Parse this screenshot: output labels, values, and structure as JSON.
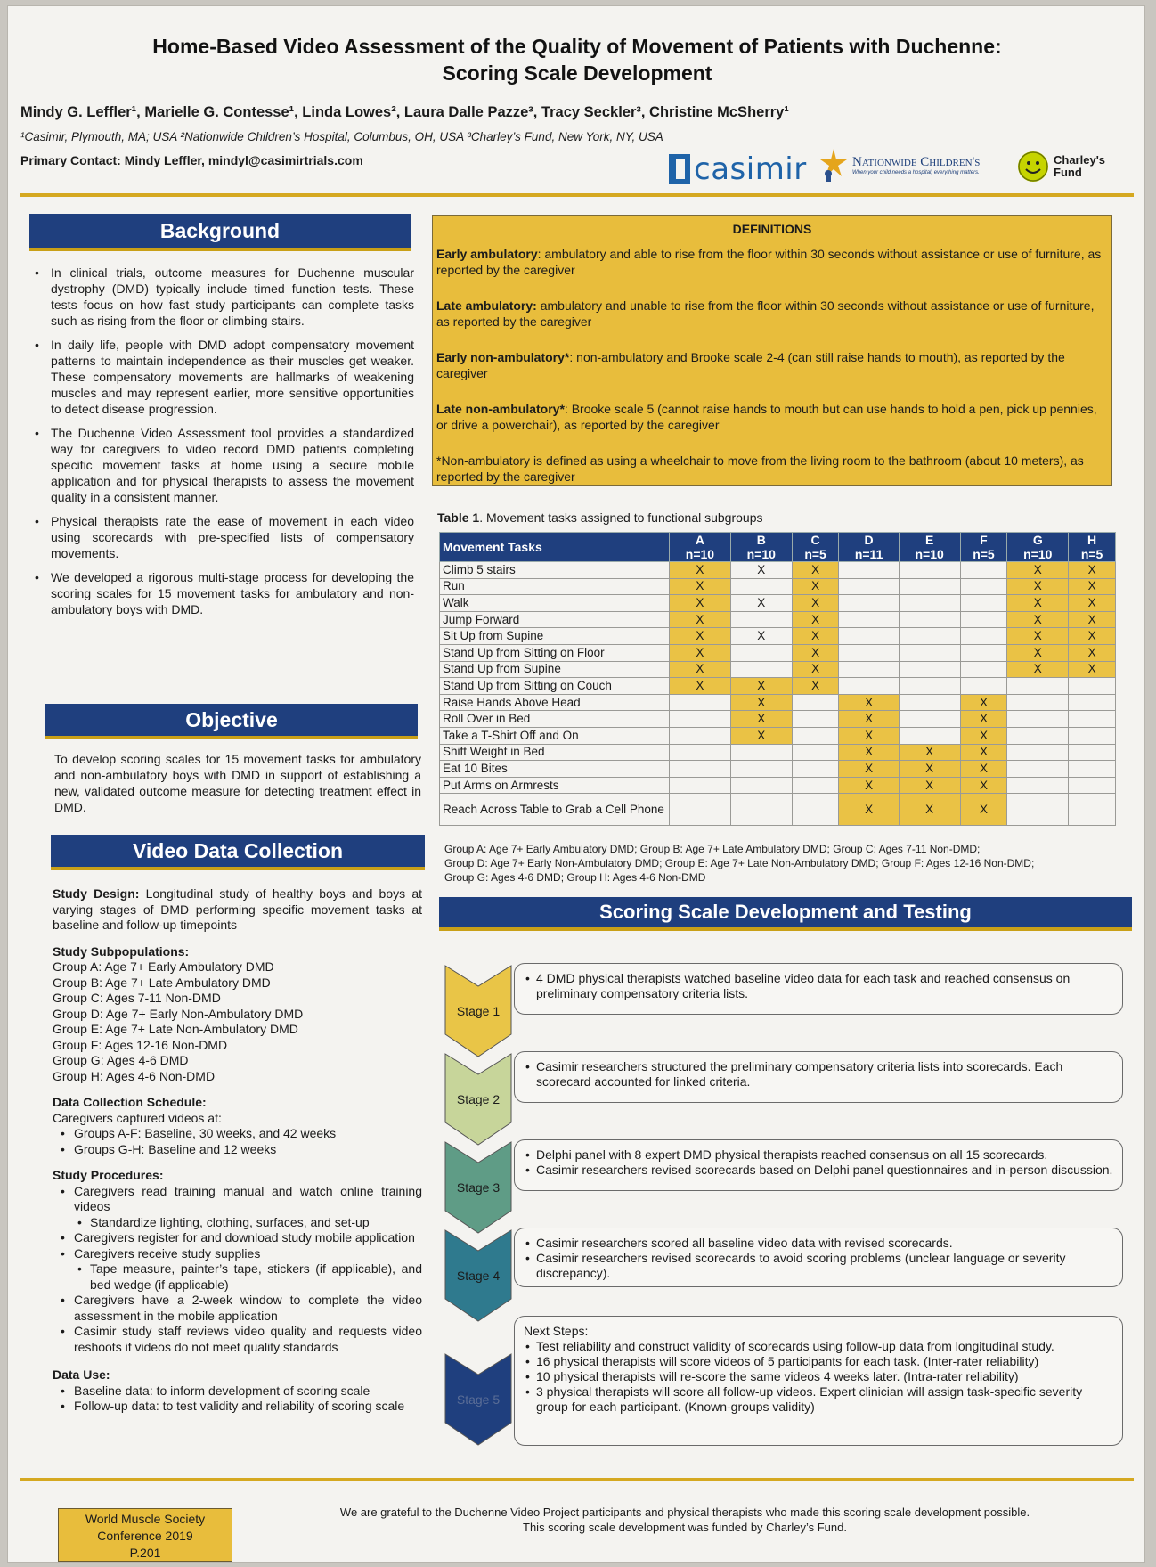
{
  "header": {
    "title_line1": "Home-Based Video Assessment of the Quality of Movement of Patients with Duchenne:",
    "title_line2": "Scoring Scale Development",
    "authors": "Mindy G. Leffler¹, Marielle G. Contesse¹, Linda Lowes², Laura Dalle Pazze³, Tracy Seckler³, Christine McSherry¹",
    "affiliations": "¹Casimir, Plymouth, MA; USA ²Nationwide Children’s Hospital, Columbus, OH, USA ³Charley’s Fund, New York, NY, USA",
    "contact": "Primary Contact: Mindy Leffler, mindyl@casimirtrials.com",
    "logos": {
      "casimir": "casimir",
      "nch": "Nationwide Children's",
      "nch_tagline": "When your child needs a hospital, everything matters.",
      "charleys_1": "Charley's",
      "charleys_2": "Fund"
    },
    "accent_color": "#1f3f7e",
    "gold_color": "#e8bd3c"
  },
  "background": {
    "heading": "Background",
    "bullets": [
      "In clinical trials, outcome measures for Duchenne muscular dystrophy (DMD) typically include timed function tests. These tests focus on how fast study participants can complete tasks such as rising from the floor or climbing stairs.",
      "In daily life, people with DMD adopt compensatory movement patterns to maintain independence as their muscles get weaker. These compensatory movements are hallmarks of weakening muscles and may represent earlier, more sensitive opportunities to detect disease progression.",
      "The Duchenne Video Assessment tool provides a standardized way for caregivers to video record DMD patients completing specific movement tasks at home using a secure mobile application and for physical therapists to assess the movement quality in a consistent manner.",
      "Physical therapists rate the ease of movement in each video using scorecards with pre-specified lists of compensatory movements.",
      "We developed a rigorous multi-stage process for developing the scoring scales for 15 movement tasks for ambulatory and non-ambulatory boys with DMD."
    ]
  },
  "objective": {
    "heading": "Objective",
    "text": "To develop scoring scales for 15 movement tasks for ambulatory and non-ambulatory boys with DMD in support of establishing a new, validated outcome measure for detecting treatment effect in DMD."
  },
  "video_data_collection": {
    "heading": "Video Data Collection",
    "study_design_label": "Study Design:",
    "study_design_text": " Longitudinal study of healthy boys and boys at varying stages of DMD performing specific movement tasks at baseline and follow-up timepoints",
    "subpop_label": "Study Subpopulations:",
    "subpops": [
      "Group A: Age 7+ Early Ambulatory DMD",
      "Group B: Age 7+ Late Ambulatory DMD",
      "Group C: Ages 7-11 Non-DMD",
      "Group D: Age 7+ Early Non-Ambulatory DMD",
      "Group E: Age 7+ Late Non-Ambulatory DMD",
      "Group F: Ages 12-16 Non-DMD",
      "Group G: Ages 4-6 DMD",
      "Group H: Ages 4-6 Non-DMD"
    ],
    "schedule_label": "Data Collection Schedule:",
    "schedule_intro": "Caregivers captured videos at:",
    "schedule": [
      "Groups A-F: Baseline, 30 weeks, and 42 weeks",
      "Groups G-H: Baseline and 12 weeks"
    ],
    "procedures_label": "Study Procedures:",
    "procedures": [
      "Caregivers read training manual and watch online training videos",
      "Standardize lighting, clothing, surfaces, and set-up",
      "Caregivers register for and download study mobile application",
      "Caregivers receive study supplies",
      "Tape measure, painter’s tape, stickers (if applicable), and bed wedge (if applicable)",
      "Caregivers have a 2-week window to complete the video assessment in the mobile application",
      "Casimir study staff reviews video quality and requests video reshoots if videos do not meet quality standards"
    ],
    "data_use_label": "Data Use:",
    "data_use": [
      "Baseline data: to inform development of scoring scale",
      "Follow-up data: to test validity and reliability of scoring scale"
    ]
  },
  "definitions": {
    "heading": "DEFINITIONS",
    "items": [
      {
        "term": "Early ambulatory",
        "sep": ": ",
        "text": "ambulatory and able to rise from the floor within 30 seconds without assistance or use of furniture, as reported by the caregiver"
      },
      {
        "term": "Late ambulatory:",
        "sep": " ",
        "text": "ambulatory and unable to rise from the floor within 30 seconds without assistance or use of furniture, as reported by the caregiver"
      },
      {
        "term": "Early non-ambulatory*",
        "sep": ": ",
        "text": "non-ambulatory and Brooke scale 2-4 (can still raise hands to mouth), as reported by the caregiver"
      },
      {
        "term": "Late non-ambulatory*",
        "sep": ": ",
        "text": "Brooke scale 5 (cannot raise hands to mouth but can use hands to hold a pen, pick up pennies, or drive a powerchair), as reported by the caregiver"
      }
    ],
    "footnote": "*Non-ambulatory is defined as using a wheelchair to move from the living room to the bathroom (about 10 meters), as reported by the caregiver"
  },
  "table1": {
    "caption_label": "Table 1",
    "caption_text": ". Movement tasks assigned to functional subgroups",
    "task_header": "Movement Tasks",
    "groups": [
      {
        "g": "A",
        "n": "n=10"
      },
      {
        "g": "B",
        "n": "n=10"
      },
      {
        "g": "C",
        "n": "n=5"
      },
      {
        "g": "D",
        "n": "n=11"
      },
      {
        "g": "E",
        "n": "n=10"
      },
      {
        "g": "F",
        "n": "n=5"
      },
      {
        "g": "G",
        "n": "n=10"
      },
      {
        "g": "H",
        "n": "n=5"
      }
    ],
    "rows": [
      {
        "task": "Climb 5 stairs",
        "hl": [
          1,
          0,
          1,
          0,
          0,
          0,
          1,
          1
        ],
        "x": [
          "X",
          "X",
          "X",
          "",
          "",
          "",
          "X",
          "X"
        ]
      },
      {
        "task": "Run",
        "hl": [
          1,
          0,
          1,
          0,
          0,
          0,
          1,
          1
        ],
        "x": [
          "X",
          "",
          "X",
          "",
          "",
          "",
          "X",
          "X"
        ]
      },
      {
        "task": "Walk",
        "hl": [
          1,
          0,
          1,
          0,
          0,
          0,
          1,
          1
        ],
        "x": [
          "X",
          "X",
          "X",
          "",
          "",
          "",
          "X",
          "X"
        ]
      },
      {
        "task": "Jump Forward",
        "hl": [
          1,
          0,
          1,
          0,
          0,
          0,
          1,
          1
        ],
        "x": [
          "X",
          "",
          "X",
          "",
          "",
          "",
          "X",
          "X"
        ]
      },
      {
        "task": "Sit Up from Supine",
        "hl": [
          1,
          0,
          1,
          0,
          0,
          0,
          1,
          1
        ],
        "x": [
          "X",
          "X",
          "X",
          "",
          "",
          "",
          "X",
          "X"
        ]
      },
      {
        "task": "Stand Up from Sitting on Floor",
        "hl": [
          1,
          0,
          1,
          0,
          0,
          0,
          1,
          1
        ],
        "x": [
          "X",
          "",
          "X",
          "",
          "",
          "",
          "X",
          "X"
        ]
      },
      {
        "task": "Stand Up from Supine",
        "hl": [
          1,
          0,
          1,
          0,
          0,
          0,
          1,
          1
        ],
        "x": [
          "X",
          "",
          "X",
          "",
          "",
          "",
          "X",
          "X"
        ]
      },
      {
        "task": "Stand Up from Sitting on Couch",
        "hl": [
          1,
          1,
          1,
          0,
          0,
          0,
          0,
          0
        ],
        "x": [
          "X",
          "X",
          "X",
          "",
          "",
          "",
          "",
          ""
        ]
      },
      {
        "task": "Raise Hands Above Head",
        "hl": [
          0,
          1,
          0,
          1,
          0,
          1,
          0,
          0
        ],
        "x": [
          "",
          "X",
          "",
          "X",
          "",
          "X",
          "",
          ""
        ]
      },
      {
        "task": "Roll Over in Bed",
        "hl": [
          0,
          1,
          0,
          1,
          0,
          1,
          0,
          0
        ],
        "x": [
          "",
          "X",
          "",
          "X",
          "",
          "X",
          "",
          ""
        ]
      },
      {
        "task": "Take a T-Shirt Off and On",
        "hl": [
          0,
          1,
          0,
          1,
          0,
          1,
          0,
          0
        ],
        "x": [
          "",
          "X",
          "",
          "X",
          "",
          "X",
          "",
          ""
        ]
      },
      {
        "task": "Shift Weight in Bed",
        "hl": [
          0,
          0,
          0,
          1,
          1,
          1,
          0,
          0
        ],
        "x": [
          "",
          "",
          "",
          "X",
          "X",
          "X",
          "",
          ""
        ]
      },
      {
        "task": "Eat 10 Bites",
        "hl": [
          0,
          0,
          0,
          1,
          1,
          1,
          0,
          0
        ],
        "x": [
          "",
          "",
          "",
          "X",
          "X",
          "X",
          "",
          ""
        ]
      },
      {
        "task": "Put Arms on Armrests",
        "hl": [
          0,
          0,
          0,
          1,
          1,
          1,
          0,
          0
        ],
        "x": [
          "",
          "",
          "",
          "X",
          "X",
          "X",
          "",
          ""
        ]
      },
      {
        "task": "Reach Across Table to Grab a Cell Phone",
        "hl": [
          0,
          0,
          0,
          1,
          1,
          1,
          0,
          0
        ],
        "x": [
          "",
          "",
          "",
          "X",
          "X",
          "X",
          "",
          ""
        ]
      }
    ],
    "group_note_1": "Group A: Age 7+ Early Ambulatory DMD; Group B: Age 7+ Late Ambulatory DMD; Group C: Ages 7-11 Non-DMD;",
    "group_note_2": "Group D: Age 7+ Early Non-Ambulatory DMD; Group E: Age 7+ Late Non-Ambulatory DMD; Group F: Ages 12-16 Non-DMD;",
    "group_note_3": "Group G: Ages 4-6 DMD; Group H: Ages 4-6 Non-DMD"
  },
  "scoring": {
    "heading": "Scoring Scale Development and Testing",
    "stages": [
      {
        "label": "Stage 1",
        "color": "#e9c547",
        "intro": "",
        "bullets": [
          "4 DMD physical therapists watched baseline video data for each task and reached consensus on preliminary compensatory criteria lists."
        ]
      },
      {
        "label": "Stage 2",
        "color": "#c7d59a",
        "intro": "",
        "bullets": [
          "Casimir researchers structured the preliminary compensatory criteria lists into scorecards.  Each scorecard accounted for linked criteria."
        ]
      },
      {
        "label": "Stage 3",
        "color": "#5f9c86",
        "intro": "",
        "bullets": [
          "Delphi panel with 8 expert DMD physical therapists reached consensus on all 15 scorecards.",
          "Casimir researchers revised scorecards based on Delphi panel questionnaires and in-person discussion."
        ]
      },
      {
        "label": "Stage 4",
        "color": "#2f7a8e",
        "intro": "",
        "bullets": [
          "Casimir researchers scored all baseline video data with revised scorecards.",
          "Casimir researchers revised scorecards to avoid scoring problems (unclear language or severity discrepancy)."
        ]
      },
      {
        "label": "Stage 5",
        "color": "#1f3f7e",
        "intro": "Next Steps:",
        "bullets": [
          "Test reliability and construct validity of scorecards using follow-up data from longitudinal study.",
          "16 physical therapists will score videos of 5 participants for each task. (Inter-rater reliability)",
          "10 physical therapists will re-score the same videos 4 weeks later. (Intra-rater reliability)",
          "3 physical therapists will score all follow-up videos. Expert clinician will assign task-specific severity group for each participant. (Known-groups validity)"
        ]
      }
    ]
  },
  "footer": {
    "conf_line1": "World Muscle Society",
    "conf_line2": "Conference 2019",
    "conf_line3": "P.201",
    "ack_line1": "We are grateful to the Duchenne Video Project participants and physical therapists who made this scoring scale development possible.",
    "ack_line2": "This scoring scale development was funded by Charley’s Fund."
  }
}
